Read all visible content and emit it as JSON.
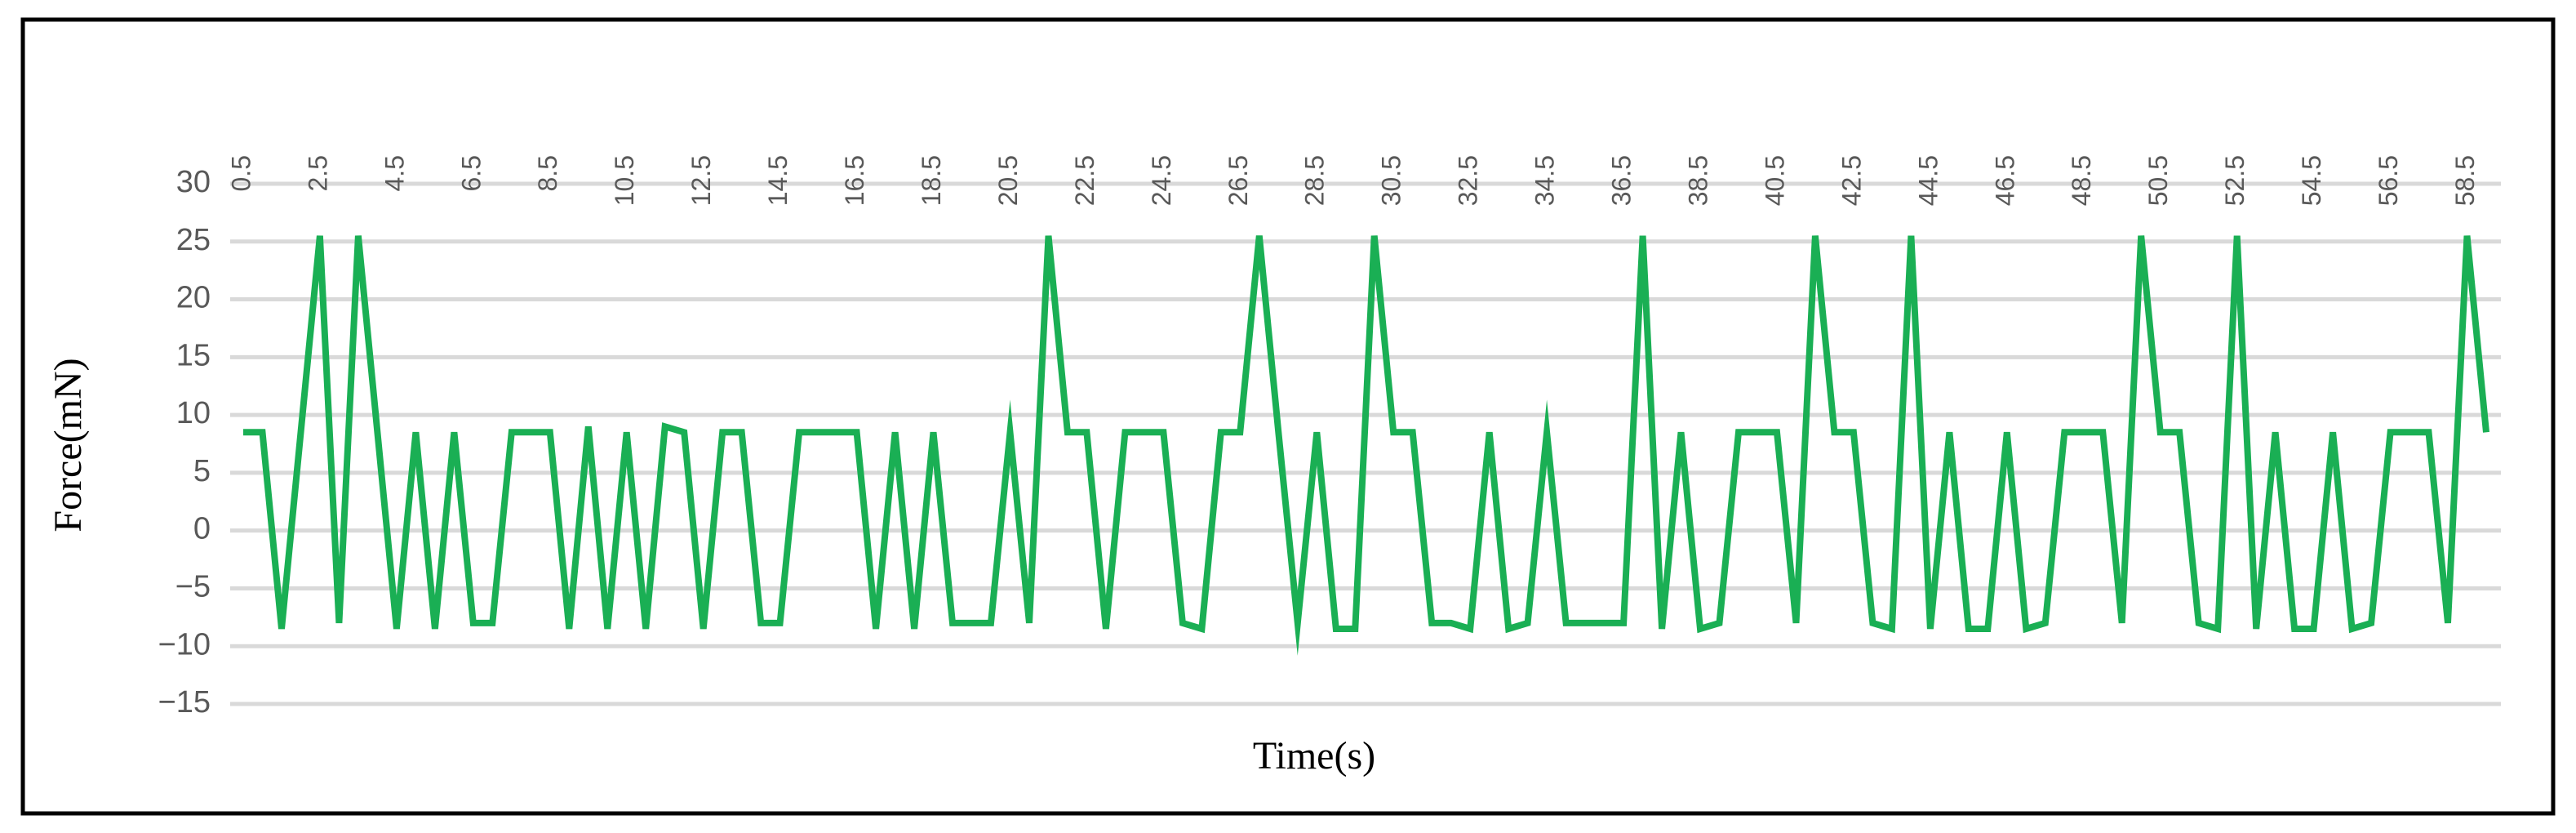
{
  "chart_data": {
    "type": "line",
    "x_label": "Time(s)",
    "y_label": "Force(mN)",
    "categories": [
      "0.5",
      null,
      null,
      null,
      "2.5",
      null,
      null,
      null,
      "4.5",
      null,
      null,
      null,
      "6.5",
      null,
      null,
      null,
      "8.5",
      null,
      null,
      null,
      "10.5",
      null,
      null,
      null,
      "12.5",
      null,
      null,
      null,
      "14.5",
      null,
      null,
      null,
      "16.5",
      null,
      null,
      null,
      "18.5",
      null,
      null,
      null,
      "20.5",
      null,
      null,
      null,
      "22.5",
      null,
      null,
      null,
      "24.5",
      null,
      null,
      null,
      "26.5",
      null,
      null,
      null,
      "28.5",
      null,
      null,
      null,
      "30.5",
      null,
      null,
      null,
      "32.5",
      null,
      null,
      null,
      "34.5",
      null,
      null,
      null,
      "36.5",
      null,
      null,
      null,
      "38.5",
      null,
      null,
      null,
      "40.5",
      null,
      null,
      null,
      "42.5",
      null,
      null,
      null,
      "44.5",
      null,
      null,
      null,
      "46.5",
      null,
      null,
      null,
      "48.5",
      null,
      null,
      null,
      "50.5",
      null,
      null,
      null,
      "52.5",
      null,
      null,
      null,
      "54.5",
      null,
      null,
      null,
      "56.5",
      null,
      null,
      null,
      "58.5",
      null
    ],
    "series": [
      {
        "name": "Force",
        "color": "#1aaf54",
        "values": [
          8.5,
          8.5,
          -8.5,
          8.5,
          25.5,
          -8,
          25.5,
          8.5,
          -8.5,
          8.5,
          -8.5,
          8.5,
          -8,
          -8,
          8.5,
          8.5,
          8.5,
          -8.5,
          9,
          -8.5,
          8.5,
          -8.5,
          9,
          8.5,
          -8.5,
          8.5,
          8.5,
          -8,
          -8,
          8.5,
          8.5,
          8.5,
          8.5,
          -8.5,
          8.5,
          -8.5,
          8.5,
          -8,
          -8,
          -8,
          8.5,
          -8,
          25.5,
          8.5,
          8.5,
          -8.5,
          8.5,
          8.5,
          8.5,
          -8,
          -8.5,
          8.5,
          8.5,
          25.5,
          8.5,
          -8,
          8.5,
          -8.5,
          -8.5,
          25.5,
          8.5,
          8.5,
          -8,
          -8,
          -8.5,
          8.5,
          -8.5,
          -8,
          8.5,
          -8,
          -8,
          -8,
          -8,
          25.5,
          -8.5,
          8.5,
          -8.5,
          -8,
          8.5,
          8.5,
          8.5,
          -8,
          25.5,
          8.5,
          8.5,
          -8,
          -8.5,
          25.5,
          -8.5,
          8.5,
          -8.5,
          -8.5,
          8.5,
          -8.5,
          -8,
          8.5,
          8.5,
          8.5,
          -8,
          25.5,
          8.5,
          8.5,
          -8,
          -8.5,
          25.5,
          -8.5,
          8.5,
          -8.5,
          -8.5,
          8.5,
          -8.5,
          -8,
          8.5,
          8.5,
          8.5,
          -8,
          25.5,
          8.5
        ]
      }
    ],
    "ylim": [
      -15,
      30
    ],
    "yticks": [
      {
        "value": -15,
        "label": "−15"
      },
      {
        "value": -10,
        "label": "−10"
      },
      {
        "value": -5,
        "label": "−5"
      },
      0,
      5,
      10,
      15,
      20,
      25,
      30
    ],
    "grid": true
  }
}
